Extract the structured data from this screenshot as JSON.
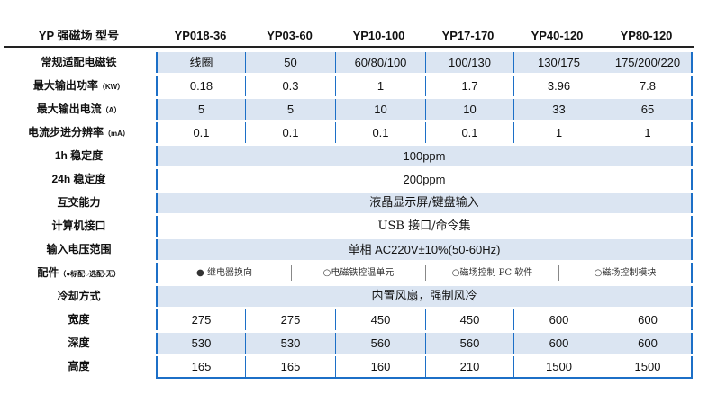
{
  "header": {
    "title": "YP 强磁场  型号",
    "models": [
      "YP018-36",
      "YP03-60",
      "YP10-100",
      "YP17-170",
      "YP40-120",
      "YP80-120"
    ]
  },
  "rows": {
    "magnet": {
      "label": "常规适配电磁铁",
      "values": [
        "线圈",
        "50",
        "60/80/100",
        "100/130",
        "130/175",
        "175/200/220"
      ]
    },
    "power": {
      "label": "最大输出功率",
      "unit": "（KW）",
      "values": [
        "0.18",
        "0.3",
        "1",
        "1.7",
        "3.96",
        "7.8"
      ]
    },
    "current": {
      "label": "最大输出电流",
      "unit": "（A）",
      "values": [
        "5",
        "5",
        "10",
        "10",
        "33",
        "65"
      ]
    },
    "resolution": {
      "label": "电流步进分辨率",
      "unit": "（mA）",
      "values": [
        "0.1",
        "0.1",
        "0.1",
        "0.1",
        "1",
        "1"
      ]
    },
    "stab1h": {
      "label": "1h 稳定度",
      "value": "100ppm"
    },
    "stab24h": {
      "label": "24h 稳定度",
      "value": "200ppm"
    },
    "interaction": {
      "label": "互交能力",
      "value": "液晶显示屏/键盘输入"
    },
    "interface": {
      "label": "计算机接口",
      "value": "USB 接口/命令集"
    },
    "voltage": {
      "label": "输入电压范围",
      "value": "单相 AC220V±10%(50-60Hz)"
    },
    "accessories": {
      "label": "配件",
      "legend": "（●标配○选配-无）",
      "items": [
        "●  继电器换向",
        "○电磁铁控温单元",
        "○磁场控制 PC 软件",
        "○磁场控制模块"
      ]
    },
    "cooling": {
      "label": "冷却方式",
      "value": "内置风扇，强制风冷"
    },
    "width": {
      "label": "宽度",
      "values": [
        "275",
        "275",
        "450",
        "450",
        "600",
        "600"
      ]
    },
    "depth": {
      "label": "深度",
      "values": [
        "530",
        "530",
        "560",
        "560",
        "600",
        "600"
      ]
    },
    "height": {
      "label": "高度",
      "values": [
        "165",
        "165",
        "160",
        "210",
        "1500",
        "1500"
      ]
    }
  }
}
